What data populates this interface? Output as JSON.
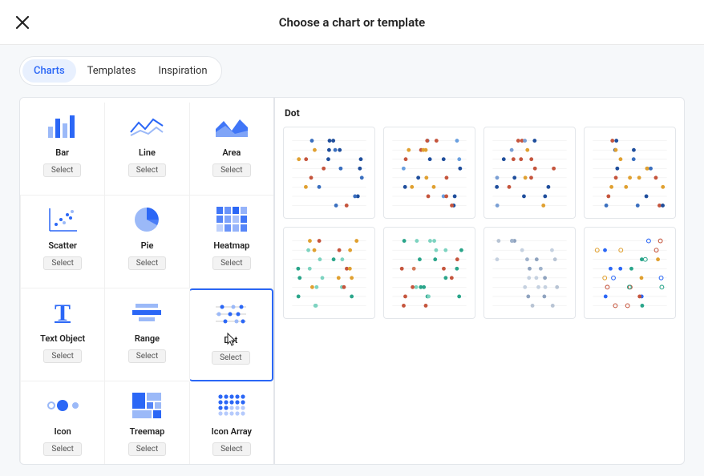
{
  "header": {
    "title": "Choose a chart or template"
  },
  "tabs": [
    {
      "label": "Charts",
      "active": true
    },
    {
      "label": "Templates",
      "active": false
    },
    {
      "label": "Inspiration",
      "active": false
    }
  ],
  "select_label": "Select",
  "chart_types": [
    {
      "id": "bar",
      "label": "Bar"
    },
    {
      "id": "line",
      "label": "Line"
    },
    {
      "id": "area",
      "label": "Area"
    },
    {
      "id": "scatter",
      "label": "Scatter"
    },
    {
      "id": "pie",
      "label": "Pie"
    },
    {
      "id": "heatmap",
      "label": "Heatmap"
    },
    {
      "id": "text",
      "label": "Text Object"
    },
    {
      "id": "range",
      "label": "Range"
    },
    {
      "id": "dot",
      "label": "Dot",
      "selected": true
    },
    {
      "id": "icon",
      "label": "Icon"
    },
    {
      "id": "treemap",
      "label": "Treemap"
    },
    {
      "id": "iconarray",
      "label": "Icon Array"
    }
  ],
  "right_panel": {
    "title": "Dot",
    "template_count": 8
  },
  "colors": {
    "accent": "#2b67f6",
    "accent_light": "#9bb9f8",
    "tab_active_bg": "#e8f0fe",
    "border": "#e3e6ea",
    "panel_bg": "#f6f8fa"
  },
  "template_palettes": [
    [
      "#1f4e9c",
      "#3a6fbf",
      "#c5553d",
      "#e0a030"
    ],
    [
      "#1f4e9c",
      "#c5553d",
      "#e0a030",
      "#6aa0e0"
    ],
    [
      "#1f4e9c",
      "#c5553d",
      "#e0a030",
      "#7a9fd4"
    ],
    [
      "#1f4e9c",
      "#c5553d",
      "#e0a030",
      "#3a6fbf"
    ],
    [
      "#7dd3c0",
      "#2aa58a",
      "#c5553d",
      "#e0a030"
    ],
    [
      "#7dd3c0",
      "#2aa58a",
      "#c5553d",
      "#d47a5a"
    ],
    [
      "#b8c4d4",
      "#8fa3bf",
      "#c5d1e0",
      "#a0b3cc"
    ],
    [
      "#2b67f6",
      "#e0a030",
      "#c5553d",
      "#2aa58a"
    ]
  ]
}
